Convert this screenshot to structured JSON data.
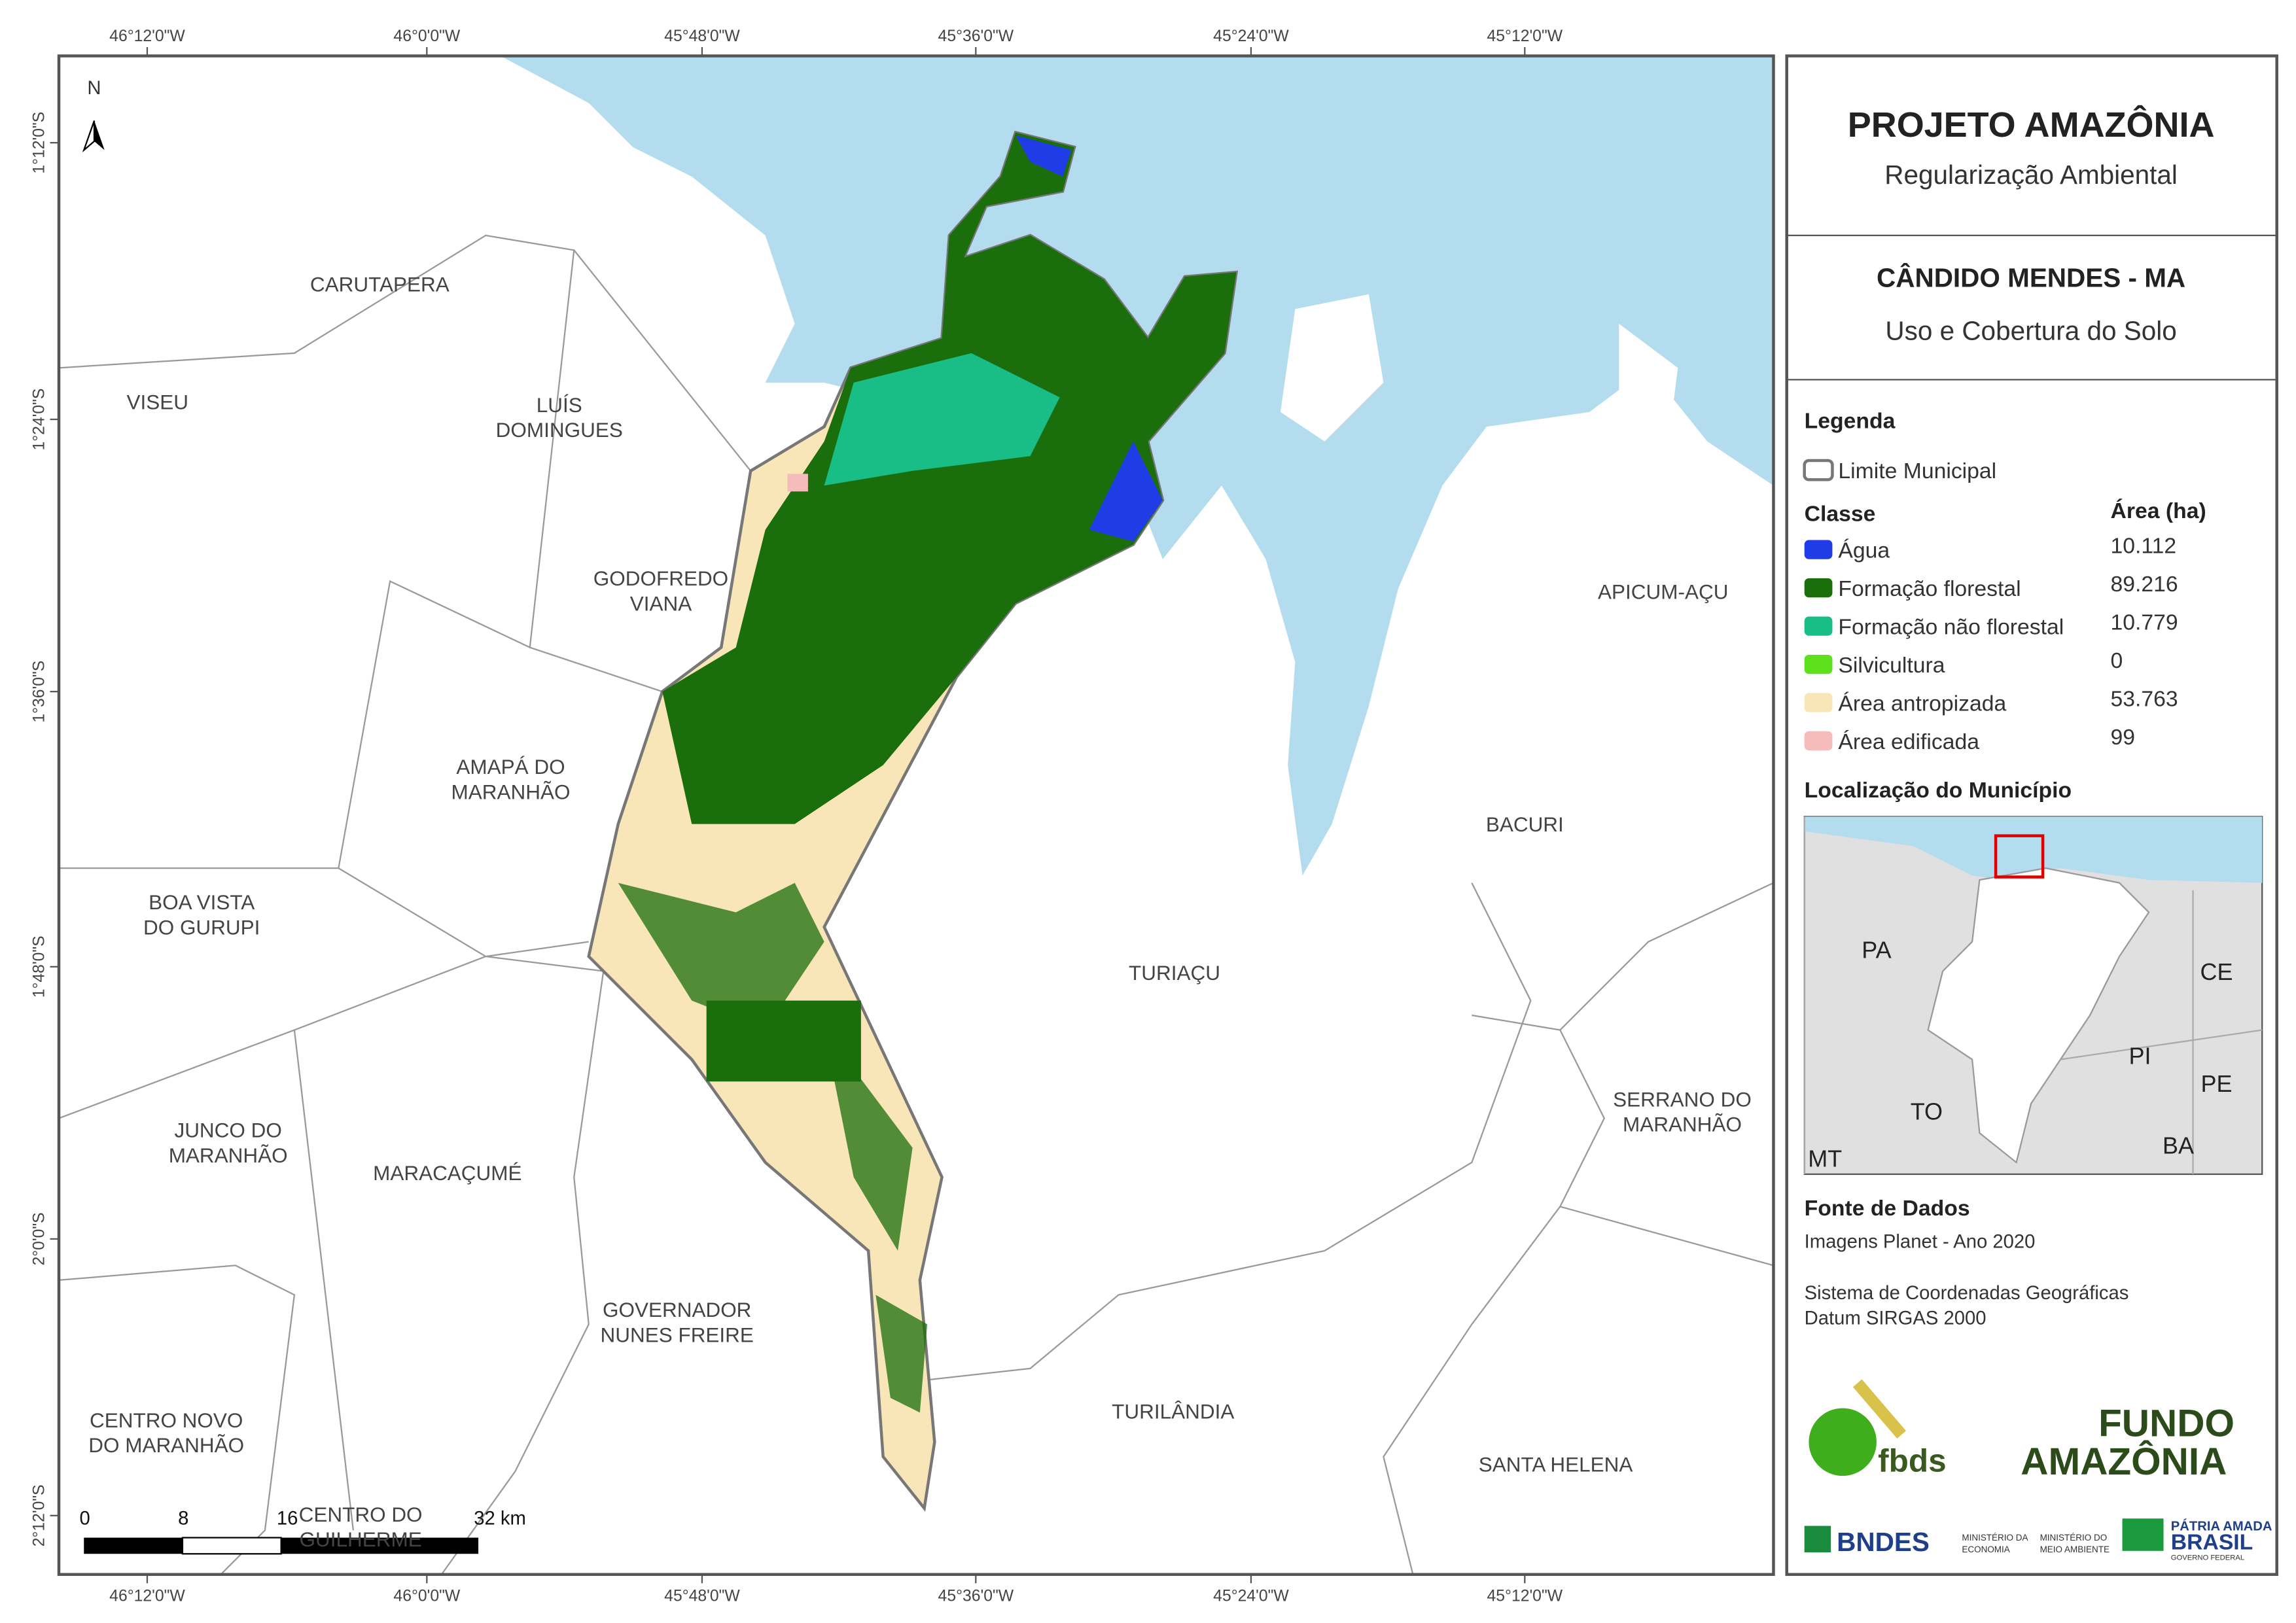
{
  "map": {
    "top_ticks": [
      "46°12'0\"W",
      "46°0'0\"W",
      "45°48'0\"W",
      "45°36'0\"W",
      "45°24'0\"W",
      "45°12'0\"W"
    ],
    "bottom_ticks": [
      "46°12'0\"W",
      "46°0'0\"W",
      "45°48'0\"W",
      "45°36'0\"W",
      "45°24'0\"W",
      "45°12'0\"W"
    ],
    "left_ticks": [
      "1°12'0\"S",
      "1°24'0\"S",
      "1°36'0\"S",
      "1°48'0\"S",
      "2°0'0\"S",
      "2°12'0\"S"
    ],
    "north": "N",
    "municipalities": [
      {
        "lines": [
          "CARUTAPERA"
        ]
      },
      {
        "lines": [
          "VISEU"
        ]
      },
      {
        "lines": [
          "LUÍS",
          "DOMINGUES"
        ]
      },
      {
        "lines": [
          "GODOFREDO",
          "VIANA"
        ]
      },
      {
        "lines": [
          "APICUM-AÇU"
        ]
      },
      {
        "lines": [
          "AMAPÁ DO",
          "MARANHÃO"
        ]
      },
      {
        "lines": [
          "BACURI"
        ]
      },
      {
        "lines": [
          "BOA VISTA",
          "DO GURUPI"
        ]
      },
      {
        "lines": [
          "TURIAÇU"
        ]
      },
      {
        "lines": [
          "SERRANO DO",
          "MARANHÃO"
        ]
      },
      {
        "lines": [
          "JUNCO DO",
          "MARANHÃO"
        ]
      },
      {
        "lines": [
          "MARACAÇUMÉ"
        ]
      },
      {
        "lines": [
          "GOVERNADOR",
          "NUNES FREIRE"
        ]
      },
      {
        "lines": [
          "TURILÂNDIA"
        ]
      },
      {
        "lines": [
          "CENTRO NOVO",
          "DO MARANHÃO"
        ]
      },
      {
        "lines": [
          "SANTA HELENA"
        ]
      },
      {
        "lines": [
          "CENTRO DO",
          "GUILHERME"
        ]
      }
    ],
    "scale_labels": [
      "0",
      "8",
      "16",
      "32 km"
    ]
  },
  "panel": {
    "title": "PROJETO AMAZÔNIA",
    "subtitle": "Regularização Ambiental",
    "municipality": "CÂNDIDO MENDES - MA",
    "theme": "Uso e Cobertura do Solo",
    "legend": {
      "title": "Legenda",
      "boundary": "Limite Municipal",
      "class_header": "Classe",
      "area_header": "Área (ha)",
      "items": [
        {
          "name": "Água",
          "area": "10.112",
          "color": "#1f3ce6"
        },
        {
          "name": "Formação florestal",
          "area": "89.216",
          "color": "#1b6e0c"
        },
        {
          "name": "Formação não florestal",
          "area": "10.779",
          "color": "#19be86"
        },
        {
          "name": "Silvicultura",
          "area": "0",
          "color": "#5ee01c"
        },
        {
          "name": "Área antropizada",
          "area": "53.763",
          "color": "#f8e6b8"
        },
        {
          "name": "Área edificada",
          "area": "99",
          "color": "#f6bcbc"
        }
      ]
    },
    "location": {
      "title": "Localização do Município",
      "labels": [
        "PA",
        "CE",
        "PI",
        "PE",
        "TO",
        "BA",
        "MT"
      ]
    },
    "sources": {
      "title": "Fonte de Dados",
      "lines": [
        "Imagens Planet - Ano 2020",
        "Sistema de Coordenadas Geográficas",
        "Datum SIRGAS 2000"
      ]
    },
    "logos": [
      "fbds",
      "FUNDO",
      "AMAZÔNIA",
      "BNDES",
      "MINISTÉRIO DA",
      "ECONOMIA",
      "MINISTÉRIO DO",
      "MEIO AMBIENTE",
      "PÁTRIA AMADA",
      "BRASIL",
      "GOVERNO FEDERAL"
    ]
  }
}
